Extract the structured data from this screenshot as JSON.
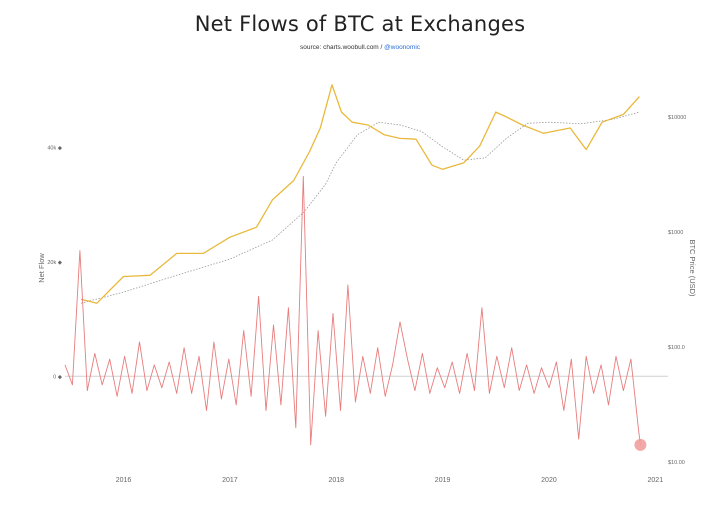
{
  "title": "Net Flows of BTC at Exchanges",
  "source_prefix": "source: charts.woobull.com / ",
  "source_handle": "@woonomic",
  "chart_data": {
    "type": "line",
    "x_ticks": [
      "2016",
      "2017",
      "2018",
      "2019",
      "2020",
      "2021"
    ],
    "x_range": [
      2015.45,
      2020.95
    ],
    "left_axis": {
      "label": "Net Flow",
      "ticks": [
        "40k",
        "20k",
        "0"
      ],
      "tick_values": [
        40000,
        20000,
        0
      ],
      "range": [
        -15000,
        55000
      ]
    },
    "right_axis": {
      "label": "BTC Price (USD)",
      "scale": "log",
      "ticks": [
        "$10000",
        "$1000",
        "$100.0",
        "$10.00"
      ],
      "tick_values": [
        10000,
        1000,
        100,
        10
      ],
      "range": [
        10,
        30000
      ]
    },
    "colors": {
      "price": "#e8b93c",
      "price_ma": "#999999",
      "net_flow": "#e87d7d",
      "zero_line": "#cfcfcf",
      "latest_marker": "#f29a9a"
    },
    "series": [
      {
        "type": "line",
        "axis": "right",
        "x": [
          2015.6,
          2015.75,
          2016.0,
          2016.25,
          2016.5,
          2016.75,
          2017.0,
          2017.25,
          2017.4,
          2017.6,
          2017.75,
          2017.85,
          2017.96,
          2018.05,
          2018.15,
          2018.3,
          2018.45,
          2018.6,
          2018.75,
          2018.9,
          2019.0,
          2019.2,
          2019.35,
          2019.5,
          2019.6,
          2019.75,
          2019.95,
          2020.2,
          2020.35,
          2020.5,
          2020.7,
          2020.85
        ],
        "values": [
          260,
          240,
          410,
          420,
          650,
          650,
          900,
          1100,
          1900,
          2800,
          5000,
          8000,
          19000,
          11000,
          9000,
          8500,
          7000,
          6500,
          6400,
          3800,
          3500,
          4000,
          5600,
          11000,
          10000,
          8500,
          7200,
          8000,
          5200,
          9000,
          10500,
          15000
        ]
      },
      {
        "type": "line",
        "axis": "right",
        "x": [
          2015.6,
          2016.0,
          2016.5,
          2017.0,
          2017.4,
          2017.7,
          2017.9,
          2018.0,
          2018.2,
          2018.4,
          2018.6,
          2018.8,
          2019.0,
          2019.2,
          2019.4,
          2019.6,
          2019.8,
          2020.0,
          2020.3,
          2020.6,
          2020.85
        ],
        "values": [
          240,
          300,
          420,
          580,
          850,
          1500,
          2600,
          4000,
          7000,
          9000,
          8500,
          7500,
          5500,
          4200,
          4400,
          6500,
          8800,
          9000,
          8700,
          9500,
          11000
        ]
      },
      {
        "type": "line",
        "axis": "left",
        "x": [
          2015.45,
          2015.52,
          2015.59,
          2015.66,
          2015.73,
          2015.8,
          2015.87,
          2015.94,
          2016.01,
          2016.08,
          2016.15,
          2016.22,
          2016.29,
          2016.36,
          2016.43,
          2016.5,
          2016.57,
          2016.64,
          2016.71,
          2016.78,
          2016.85,
          2016.92,
          2016.99,
          2017.06,
          2017.13,
          2017.2,
          2017.27,
          2017.34,
          2017.41,
          2017.48,
          2017.55,
          2017.62,
          2017.69,
          2017.76,
          2017.83,
          2017.9,
          2017.97,
          2018.04,
          2018.11,
          2018.18,
          2018.25,
          2018.32,
          2018.39,
          2018.46,
          2018.53,
          2018.6,
          2018.67,
          2018.74,
          2018.81,
          2018.88,
          2018.95,
          2019.02,
          2019.09,
          2019.16,
          2019.23,
          2019.3,
          2019.37,
          2019.44,
          2019.51,
          2019.58,
          2019.65,
          2019.72,
          2019.79,
          2019.86,
          2019.93,
          2020.0,
          2020.07,
          2020.14,
          2020.21,
          2020.28,
          2020.35,
          2020.42,
          2020.49,
          2020.56,
          2020.63,
          2020.7,
          2020.77,
          2020.84,
          2020.86
        ],
        "values": [
          2000,
          -1500,
          22000,
          -2500,
          4000,
          -1500,
          3000,
          -3500,
          3500,
          -3000,
          6000,
          -2500,
          2000,
          -2000,
          2500,
          -3000,
          5000,
          -3000,
          3500,
          -6000,
          6000,
          -4000,
          3000,
          -5000,
          8000,
          -3500,
          14000,
          -6000,
          9000,
          -5000,
          12000,
          -9000,
          35000,
          -12000,
          8000,
          -7000,
          11000,
          -6000,
          16000,
          -4500,
          3500,
          -3000,
          5000,
          -3500,
          2000,
          9500,
          3000,
          -2500,
          4000,
          -3000,
          1500,
          -2000,
          2500,
          -3000,
          4000,
          -2500,
          12000,
          -3000,
          3500,
          -2000,
          5000,
          -2500,
          2000,
          -3000,
          1500,
          -2000,
          2500,
          -6000,
          3000,
          -11000,
          3500,
          -3000,
          2000,
          -5000,
          3500,
          -2500,
          3000,
          -9000,
          -12000
        ]
      }
    ]
  }
}
